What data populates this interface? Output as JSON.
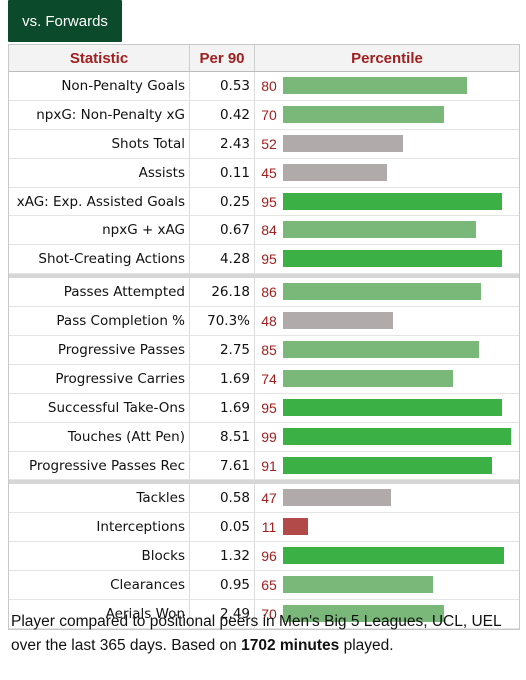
{
  "tab_label": "vs. Forwards",
  "headers": {
    "statistic": "Statistic",
    "per90": "Per 90",
    "percentile": "Percentile"
  },
  "colors": {
    "high": "#3bb044",
    "mid_high": "#7ab87a",
    "neutral": "#b0aaaa",
    "low": "#b24a4a",
    "pale": "#9db89a"
  },
  "groups": [
    [
      {
        "stat": "Non-Penalty Goals",
        "per90": "0.53",
        "pct": "80"
      },
      {
        "stat": "npxG: Non-Penalty xG",
        "per90": "0.42",
        "pct": "70"
      },
      {
        "stat": "Shots Total",
        "per90": "2.43",
        "pct": "52"
      },
      {
        "stat": "Assists",
        "per90": "0.11",
        "pct": "45"
      },
      {
        "stat": "xAG: Exp. Assisted Goals",
        "per90": "0.25",
        "pct": "95"
      },
      {
        "stat": "npxG + xAG",
        "per90": "0.67",
        "pct": "84"
      },
      {
        "stat": "Shot-Creating Actions",
        "per90": "4.28",
        "pct": "95"
      }
    ],
    [
      {
        "stat": "Passes Attempted",
        "per90": "26.18",
        "pct": "86"
      },
      {
        "stat": "Pass Completion %",
        "per90": "70.3%",
        "pct": "48"
      },
      {
        "stat": "Progressive Passes",
        "per90": "2.75",
        "pct": "85"
      },
      {
        "stat": "Progressive Carries",
        "per90": "1.69",
        "pct": "74"
      },
      {
        "stat": "Successful Take-Ons",
        "per90": "1.69",
        "pct": "95"
      },
      {
        "stat": "Touches (Att Pen)",
        "per90": "8.51",
        "pct": "99"
      },
      {
        "stat": "Progressive Passes Rec",
        "per90": "7.61",
        "pct": "91"
      }
    ],
    [
      {
        "stat": "Tackles",
        "per90": "0.58",
        "pct": "47"
      },
      {
        "stat": "Interceptions",
        "per90": "0.05",
        "pct": "11"
      },
      {
        "stat": "Blocks",
        "per90": "1.32",
        "pct": "96"
      },
      {
        "stat": "Clearances",
        "per90": "0.95",
        "pct": "65"
      },
      {
        "stat": "Aerials Won",
        "per90": "2.49",
        "pct": "70"
      }
    ]
  ],
  "caption": {
    "part1": "Player compared to positional peers in Men's Big 5 Leagues, UCL, UEL over the last 365 days. Based on ",
    "bold": "1702 minutes",
    "part2": " played."
  }
}
